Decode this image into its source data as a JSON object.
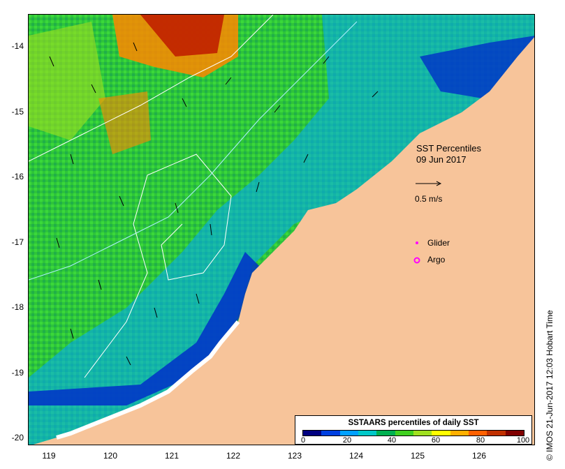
{
  "map": {
    "title_line1": "SST Percentiles",
    "title_line2": "09 Jun 2017",
    "scale_label": "0.5 m/s",
    "glider_label": "Glider",
    "argo_label": "Argo",
    "credit": "© IMOS 21-Jun-2017 12:03 Hobart Time",
    "lon_ticks": [
      "119",
      "120",
      "121",
      "122",
      "123",
      "124",
      "125",
      "126"
    ],
    "lat_ticks": [
      "-14",
      "-15",
      "-16",
      "-17",
      "-18",
      "-19",
      "-20"
    ],
    "colors": {
      "land": "#f7c49a",
      "coast_ice": "#ffffff",
      "current_vec": "#000000",
      "glider": "#ff00ff",
      "argo": "#ff00ff"
    }
  },
  "legend": {
    "title": "SSTAARS percentiles of daily SST",
    "ticks": [
      "0",
      "20",
      "40",
      "60",
      "80",
      "100"
    ],
    "colors": [
      "#000080",
      "#0040e0",
      "#00a0ff",
      "#00c8c8",
      "#00b050",
      "#40d020",
      "#a0e020",
      "#ffff00",
      "#ffb000",
      "#ff6000",
      "#c03000",
      "#800000"
    ]
  }
}
